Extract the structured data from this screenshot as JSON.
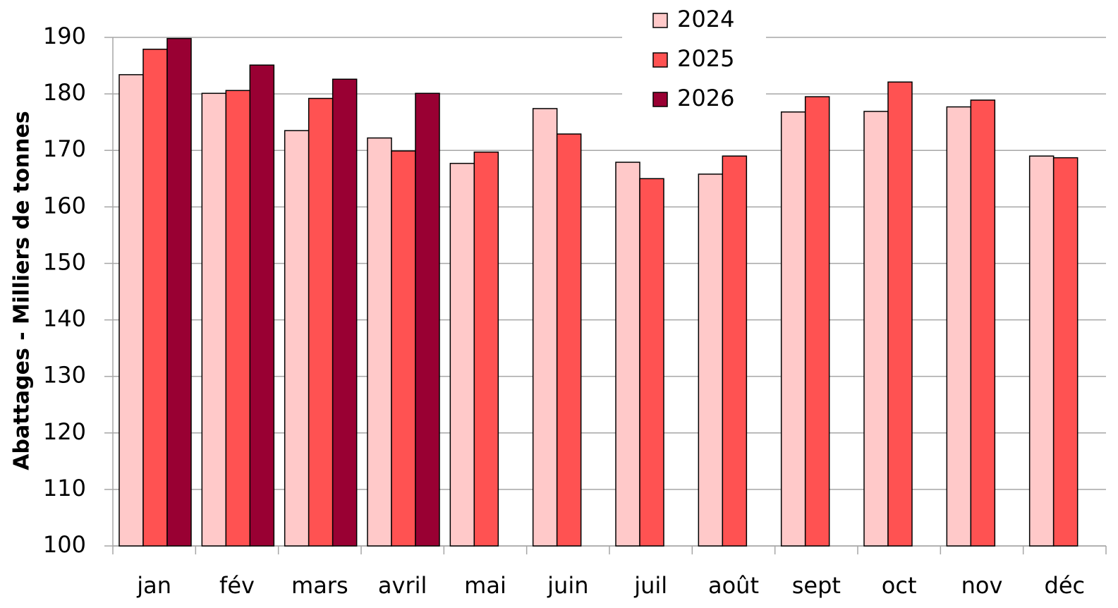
{
  "chart_data": {
    "type": "bar",
    "y_label": "Abattages - Milliers de tonnes",
    "categories": [
      "jan",
      "fév",
      "mars",
      "avril",
      "mai",
      "juin",
      "juil",
      "août",
      "sept",
      "oct",
      "nov",
      "déc"
    ],
    "series": [
      {
        "name": "2024",
        "color": "#ffc9c9",
        "values": [
          183.4,
          180.1,
          173.5,
          172.2,
          167.7,
          177.4,
          167.9,
          165.8,
          176.8,
          176.9,
          177.7,
          169.0
        ]
      },
      {
        "name": "2025",
        "color": "#ff5252",
        "values": [
          187.9,
          180.6,
          179.2,
          169.9,
          169.7,
          172.9,
          165.0,
          169.0,
          179.5,
          182.1,
          178.9,
          168.7
        ]
      },
      {
        "name": "2026",
        "color": "#990033",
        "values": [
          189.8,
          185.1,
          182.6,
          180.1,
          null,
          null,
          null,
          null,
          null,
          null,
          null,
          null
        ]
      }
    ],
    "ylim": [
      100,
      190
    ],
    "yticks": [
      100,
      110,
      120,
      130,
      140,
      150,
      160,
      170,
      180,
      190
    ],
    "grid": true,
    "legend": "top"
  }
}
